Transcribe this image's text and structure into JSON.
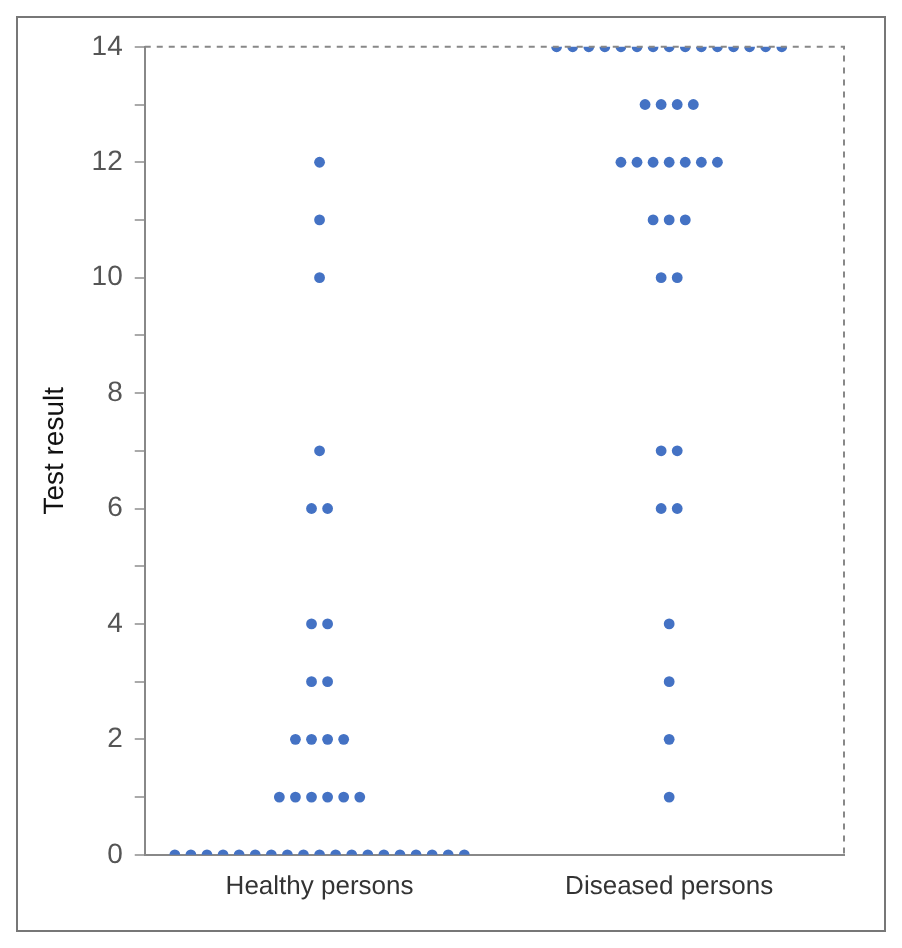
{
  "chart_data": {
    "type": "scatter",
    "ylabel": "Test result",
    "categories": [
      "Healthy persons",
      "Diseased persons"
    ],
    "series": [
      {
        "color": "#4472c4",
        "x": [
          "Healthy persons",
          "Healthy persons",
          "Healthy persons",
          "Healthy persons",
          "Healthy persons",
          "Healthy persons",
          "Healthy persons",
          "Healthy persons",
          "Healthy persons",
          "Healthy persons",
          "Healthy persons",
          "Healthy persons",
          "Healthy persons",
          "Healthy persons",
          "Healthy persons",
          "Healthy persons",
          "Healthy persons",
          "Healthy persons",
          "Healthy persons",
          "Healthy persons",
          "Healthy persons",
          "Healthy persons",
          "Healthy persons",
          "Healthy persons",
          "Healthy persons",
          "Healthy persons",
          "Healthy persons",
          "Healthy persons",
          "Healthy persons",
          "Healthy persons",
          "Healthy persons",
          "Healthy persons",
          "Healthy persons",
          "Healthy persons",
          "Healthy persons",
          "Healthy persons",
          "Healthy persons",
          "Healthy persons",
          "Healthy persons",
          "Diseased persons",
          "Diseased persons",
          "Diseased persons",
          "Diseased persons",
          "Diseased persons",
          "Diseased persons",
          "Diseased persons",
          "Diseased persons",
          "Diseased persons",
          "Diseased persons",
          "Diseased persons",
          "Diseased persons",
          "Diseased persons",
          "Diseased persons",
          "Diseased persons",
          "Diseased persons",
          "Diseased persons",
          "Diseased persons",
          "Diseased persons",
          "Diseased persons",
          "Diseased persons",
          "Diseased persons",
          "Diseased persons",
          "Diseased persons",
          "Diseased persons",
          "Diseased persons",
          "Diseased persons",
          "Diseased persons",
          "Diseased persons",
          "Diseased persons",
          "Diseased persons",
          "Diseased persons",
          "Diseased persons",
          "Diseased persons",
          "Diseased persons",
          "Diseased persons",
          "Diseased persons",
          "Diseased persons",
          "Diseased persons"
        ],
        "values": [
          0,
          0,
          0,
          0,
          0,
          0,
          0,
          0,
          0,
          0,
          0,
          0,
          0,
          0,
          0,
          0,
          0,
          0,
          0,
          1,
          1,
          1,
          1,
          1,
          1,
          2,
          2,
          2,
          2,
          3,
          3,
          4,
          4,
          6,
          6,
          7,
          10,
          11,
          12,
          14,
          14,
          14,
          14,
          14,
          14,
          14,
          14,
          14,
          14,
          14,
          14,
          14,
          14,
          14,
          13,
          13,
          13,
          13,
          12,
          12,
          12,
          12,
          12,
          12,
          12,
          11,
          11,
          11,
          10,
          10,
          7,
          7,
          6,
          6,
          4,
          3,
          2,
          1
        ]
      }
    ],
    "ylim": [
      0,
      14
    ],
    "yticks": [
      0,
      {
        "value": 1,
        "label": null
      },
      2,
      {
        "value": 3,
        "label": null
      },
      4,
      {
        "value": 5,
        "label": null
      },
      6,
      {
        "value": 7,
        "label": null
      },
      8,
      {
        "value": 9,
        "label": null
      },
      10,
      {
        "value": 11,
        "label": null
      },
      12,
      {
        "value": 13,
        "label": null
      },
      14
    ],
    "grid": false,
    "legend": false,
    "marker": "circle"
  }
}
